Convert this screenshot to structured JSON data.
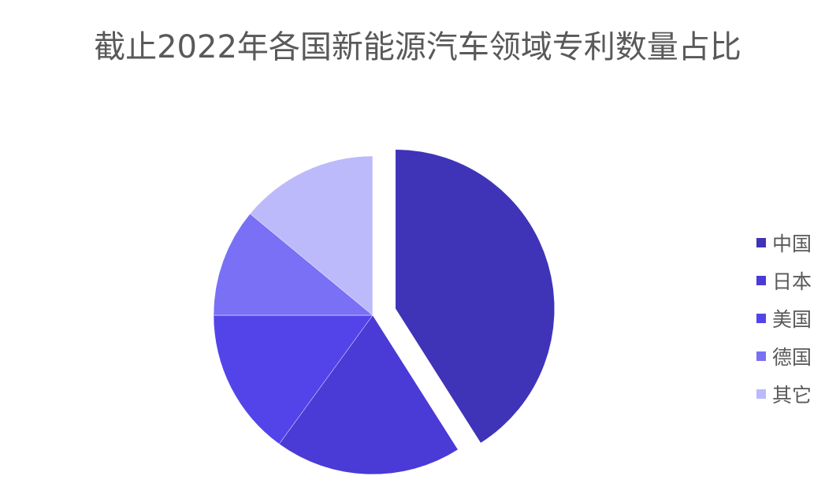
{
  "chart_data": {
    "type": "pie",
    "title": "截止2022年各国新能源汽车领域专利数量占比",
    "categories": [
      "中国",
      "日本",
      "美国",
      "德国",
      "其它"
    ],
    "values": [
      41,
      19,
      15,
      11,
      14
    ],
    "unit": "%",
    "exploded": [
      "中国"
    ],
    "colors": [
      "#3f33b8",
      "#4a3ad6",
      "#5344ea",
      "#7a70f5",
      "#bdbafb"
    ],
    "legend_position": "right",
    "start_angle_deg": 0,
    "direction": "clockwise"
  }
}
